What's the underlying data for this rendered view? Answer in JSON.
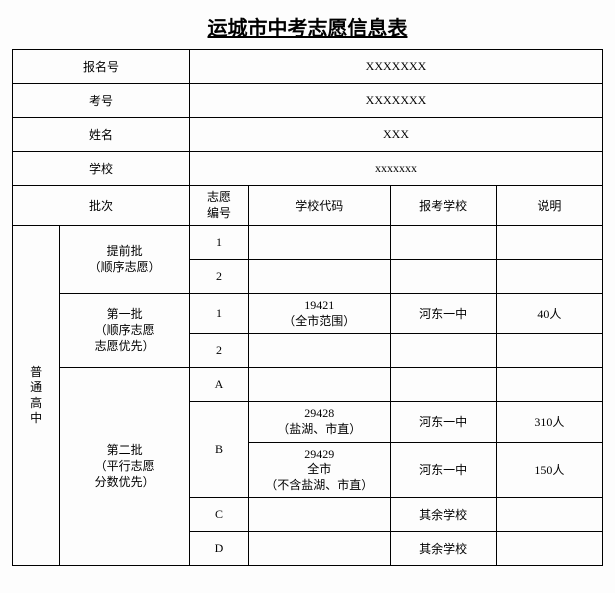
{
  "title": "运城市中考志愿信息表",
  "info_rows": [
    {
      "label": "报名号",
      "value": "XXXXXXX"
    },
    {
      "label": "考号",
      "value": "XXXXXXX"
    },
    {
      "label": "姓名",
      "value": "XXX"
    },
    {
      "label": "学校",
      "value": "xxxxxxx"
    }
  ],
  "headers": {
    "batch": "批次",
    "pref_no": "志愿\n编号",
    "school_code": "学校代码",
    "apply_school": "报考学校",
    "remark": "说明"
  },
  "side_label": "普\n通\n高\n中",
  "batches": {
    "early": "提前批\n（顺序志愿）",
    "first": "第一批\n（顺序志愿\n志愿优先）",
    "second": "第二批\n（平行志愿\n分数优先）"
  },
  "rows": [
    {
      "no": "1",
      "code": "",
      "school": "",
      "remark": ""
    },
    {
      "no": "2",
      "code": "",
      "school": "",
      "remark": ""
    },
    {
      "no": "1",
      "code": "19421\n（全市范围）",
      "school": "河东一中",
      "remark": "40人"
    },
    {
      "no": "2",
      "code": "",
      "school": "",
      "remark": ""
    },
    {
      "no": "A",
      "code": "",
      "school": "",
      "remark": ""
    },
    {
      "no": "B",
      "code": "29428\n（盐湖、市直）",
      "school": "河东一中",
      "remark": "310人"
    },
    {
      "no": "B",
      "code": "29429\n全市\n（不含盐湖、市直）",
      "school": "河东一中",
      "remark": "150人"
    },
    {
      "no": "C",
      "code": "",
      "school": "其余学校",
      "remark": ""
    },
    {
      "no": "D",
      "code": "",
      "school": "其余学校",
      "remark": ""
    }
  ],
  "colors": {
    "border": "#000000",
    "bg": "#fdfdfd",
    "text": "#000000"
  },
  "col_widths_pct": [
    8,
    22,
    10,
    24,
    18,
    18
  ]
}
